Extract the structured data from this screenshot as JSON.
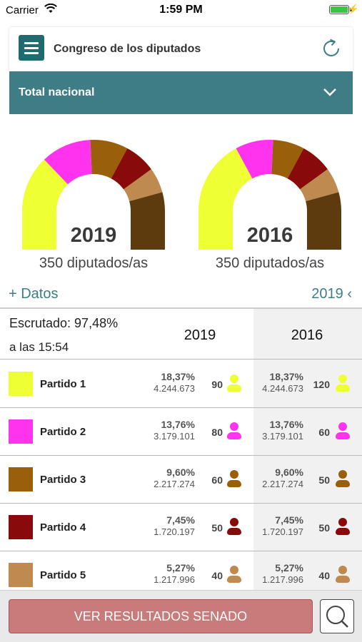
{
  "status_bar": {
    "carrier": "Carrier",
    "time": "1:59 PM"
  },
  "header": {
    "title": "Congreso de los diputados"
  },
  "region_select": {
    "label": "Total nacional"
  },
  "hemicycles": [
    {
      "year": "2019",
      "seats_label": "350 diputados/as",
      "seats": [
        90,
        80,
        60,
        50,
        40,
        30
      ]
    },
    {
      "year": "2016",
      "seats_label": "350 diputados/as",
      "seats": [
        120,
        60,
        50,
        50,
        40,
        30
      ]
    }
  ],
  "colors": {
    "accent": "#3e7d85",
    "partido_1": "#eeff33",
    "partido_2": "#ff33ee",
    "partido_3": "#995f0b",
    "partido_4": "#880a0a",
    "partido_5": "#bf8a4f",
    "partido_6": "#5e3a0f"
  },
  "links": {
    "datos": "+ Datos",
    "year_select": "2019 ‹"
  },
  "table": {
    "escrutado": "Escrutado: 97,48%",
    "hora": "a las 15:54",
    "col_a": "2019",
    "col_b": "2016",
    "rows": [
      {
        "party": "Partido 1",
        "pct_a": "18,37%",
        "votes_a": "4.244.673",
        "seats_a": "90",
        "pct_b": "18,37%",
        "votes_b": "4.244.673",
        "seats_b": "120"
      },
      {
        "party": "Partido 2",
        "pct_a": "13,76%",
        "votes_a": "3.179.101",
        "seats_a": "80",
        "pct_b": "13,76%",
        "votes_b": "3.179.101",
        "seats_b": "60"
      },
      {
        "party": "Partido 3",
        "pct_a": "9,60%",
        "votes_a": "2.217.274",
        "seats_a": "60",
        "pct_b": "9,60%",
        "votes_b": "2.217.274",
        "seats_b": "50"
      },
      {
        "party": "Partido 4",
        "pct_a": "7,45%",
        "votes_a": "1.720.197",
        "seats_a": "50",
        "pct_b": "7,45%",
        "votes_b": "1.720.197",
        "seats_b": "50"
      },
      {
        "party": "Partido 5",
        "pct_a": "5,27%",
        "votes_a": "1.217.996",
        "seats_a": "40",
        "pct_b": "5,27%",
        "votes_b": "1.217.996",
        "seats_b": "40"
      }
    ]
  },
  "bottom": {
    "senado_button": "VER RESULTADOS SENADO"
  },
  "icons": [
    "wifi-icon",
    "battery-icon",
    "menu-icon",
    "refresh-icon",
    "chevron-down-icon",
    "person-icon",
    "search-icon"
  ]
}
